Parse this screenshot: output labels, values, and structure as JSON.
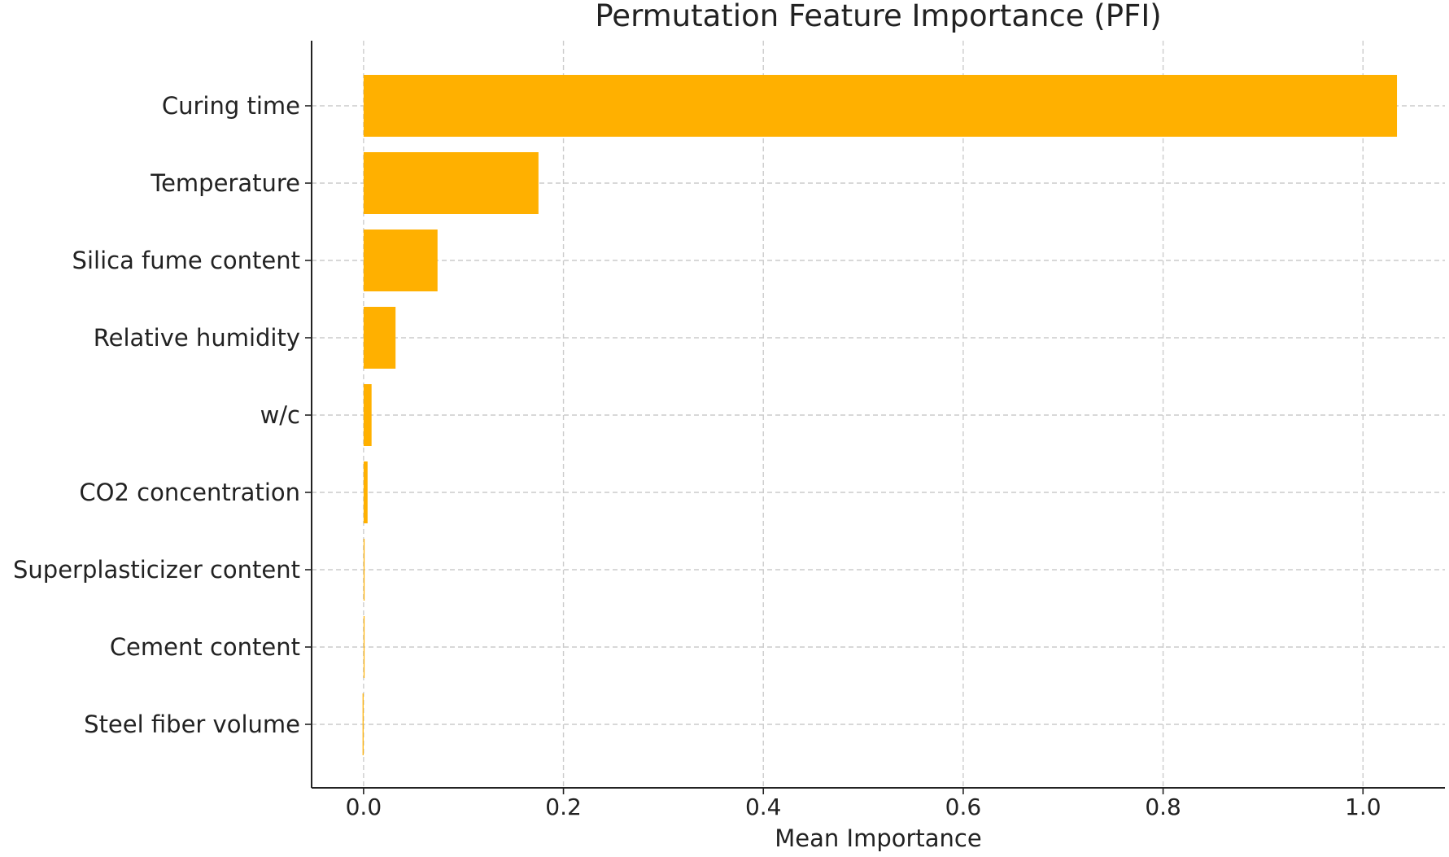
{
  "chart_data": {
    "type": "bar",
    "orientation": "horizontal",
    "title": "Permutation Feature Importance (PFI)",
    "xlabel": "Mean Importance",
    "ylabel": "",
    "categories": [
      "Curing time",
      "Temperature",
      "Silica fume content",
      "Relative humidity",
      "w/c",
      "CO2 concentration",
      "Superplasticizer content",
      "Cement content",
      "Steel fiber volume"
    ],
    "values": [
      1.034,
      0.175,
      0.074,
      0.032,
      0.008,
      0.004,
      0.001,
      0.0005,
      -0.001
    ],
    "xlim": [
      -0.052,
      1.082
    ],
    "xticks": [
      0.0,
      0.2,
      0.4,
      0.6,
      0.8,
      1.0
    ],
    "xtick_labels": [
      "0.0",
      "0.2",
      "0.4",
      "0.6",
      "0.8",
      "1.0"
    ],
    "grid": true,
    "bar_color": "#FFB000",
    "grid_color": "#cccccc",
    "axis_color": "#222222",
    "legend": "none"
  }
}
